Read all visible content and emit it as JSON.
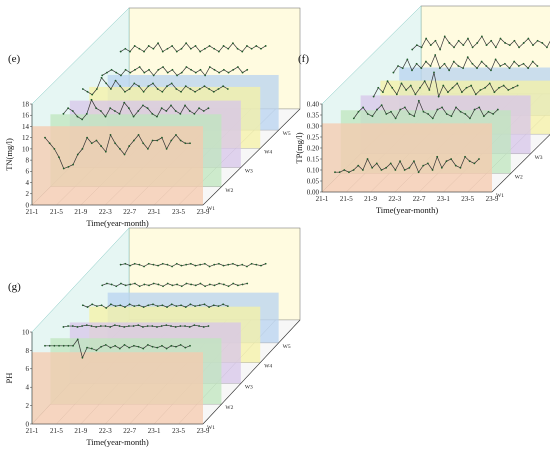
{
  "chart_data": [
    {
      "panel_label": "(e)",
      "type": "line",
      "ylabel": "TN(mg/l)",
      "xlabel": "Time(year-month)",
      "ylim": [
        0,
        18
      ],
      "y_ticks": [
        "0",
        "2",
        "4",
        "6",
        "8",
        "10",
        "12",
        "14",
        "16",
        "18"
      ],
      "x_ticks": [
        "21-1",
        "21-5",
        "21-9",
        "22-3",
        "22-7",
        "23-1",
        "23-5",
        "23-9"
      ],
      "series": [
        {
          "name": "W1",
          "color": "#f6c9ad",
          "values": [
            12,
            11,
            10,
            8.5,
            6.5,
            6.8,
            7.2,
            9,
            10,
            12,
            11,
            11.5,
            10.5,
            9.5,
            12.5,
            11,
            10,
            9,
            10.5,
            11.5,
            12.5,
            11,
            10,
            11.5,
            11.5,
            12,
            10,
            11.5,
            12.5,
            11.5,
            11,
            11
          ]
        },
        {
          "name": "W2",
          "color": "#bfe5be",
          "values": [
            13,
            14,
            13.5,
            12.5,
            12,
            13,
            15.5,
            14,
            13.5,
            12.5,
            14,
            13.5,
            13,
            15,
            14,
            12.5,
            13.5,
            14.5,
            14,
            13,
            12.5,
            14,
            13.5,
            14.5,
            13.5,
            13,
            14.5,
            13.5,
            13,
            14,
            13.5,
            14
          ]
        },
        {
          "name": "W3",
          "color": "#d7c6ea",
          "values": [
            14,
            13.5,
            13,
            14,
            16,
            15,
            14,
            15.5,
            14.5,
            13.5,
            14,
            15,
            14.5,
            13.5,
            14.5,
            15,
            14,
            13.5,
            14.5,
            15,
            14,
            13.5,
            14.5,
            14,
            13.5,
            14,
            14.5,
            14,
            13.5,
            14,
            14.5,
            14
          ]
        },
        {
          "name": "W4",
          "color": "#f5f1a6",
          "values": [
            13,
            13.5,
            14,
            13.5,
            13,
            14,
            13.5,
            14,
            14.5,
            13.5,
            14,
            13,
            14,
            14.5,
            13.5,
            14,
            13,
            13.5,
            14.5,
            14,
            13.5,
            14,
            13,
            14.5,
            14,
            13.5,
            14,
            13.5,
            14,
            14.5,
            13.5,
            14
          ]
        },
        {
          "name": "W5",
          "color": "#b8d3f0",
          "values": [
            14,
            14.5,
            14,
            15,
            14.5,
            14,
            15,
            14.5,
            15.5,
            14,
            14.5,
            15,
            14,
            14.5,
            15.5,
            14.5,
            15,
            14,
            14.5,
            15,
            14.5,
            14,
            15,
            14.5,
            15.5,
            14.5,
            14,
            15,
            14.5,
            15,
            14.5,
            15
          ]
        }
      ]
    },
    {
      "panel_label": "(f)",
      "type": "line",
      "ylabel": "TP(mg/l)",
      "xlabel": "Time(year-month)",
      "ylim": [
        0,
        0.4
      ],
      "y_ticks": [
        "0.00",
        "0.05",
        "0.10",
        "0.15",
        "0.20",
        "0.25",
        "0.30",
        "0.35",
        "0.40"
      ],
      "x_ticks": [
        "21-1",
        "21-5",
        "21-9",
        "22-3",
        "22-7",
        "23-1",
        "23-5",
        "23-9"
      ],
      "series": [
        {
          "name": "W1",
          "color": "#f6c9ad",
          "values": [
            0.09,
            0.09,
            0.1,
            0.09,
            0.1,
            0.12,
            0.1,
            0.15,
            0.11,
            0.13,
            0.1,
            0.11,
            0.13,
            0.1,
            0.14,
            0.1,
            0.11,
            0.14,
            0.09,
            0.12,
            0.13,
            0.1,
            0.16,
            0.11,
            0.14,
            0.15,
            0.12,
            0.11,
            0.16,
            0.14,
            0.13,
            0.15
          ]
        },
        {
          "name": "W2",
          "color": "#bfe5be",
          "values": [
            0.25,
            0.28,
            0.3,
            0.27,
            0.26,
            0.29,
            0.31,
            0.27,
            0.28,
            0.25,
            0.29,
            0.3,
            0.27,
            0.26,
            0.33,
            0.28,
            0.27,
            0.25,
            0.29,
            0.3,
            0.27,
            0.26,
            0.3,
            0.28,
            0.27,
            0.25,
            0.29,
            0.3,
            0.26,
            0.28,
            0.27,
            0.29
          ]
        },
        {
          "name": "W3",
          "color": "#d7c6ea",
          "values": [
            0.26,
            0.3,
            0.28,
            0.33,
            0.3,
            0.27,
            0.32,
            0.29,
            0.31,
            0.27,
            0.3,
            0.33,
            0.29,
            0.37,
            0.26,
            0.31,
            0.28,
            0.3,
            0.32,
            0.28,
            0.3,
            0.31,
            0.27,
            0.29,
            0.3,
            0.32,
            0.28,
            0.3,
            0.31,
            0.29,
            0.3,
            0.31
          ]
        },
        {
          "name": "W4",
          "color": "#f5f1a6",
          "values": [
            0.28,
            0.31,
            0.3,
            0.34,
            0.29,
            0.32,
            0.3,
            0.33,
            0.31,
            0.36,
            0.3,
            0.32,
            0.29,
            0.33,
            0.31,
            0.3,
            0.35,
            0.32,
            0.3,
            0.33,
            0.31,
            0.29,
            0.34,
            0.31,
            0.32,
            0.3,
            0.33,
            0.31,
            0.32,
            0.3,
            0.33,
            0.31
          ]
        },
        {
          "name": "W5",
          "color": "#b8d3f0",
          "values": [
            0.3,
            0.32,
            0.31,
            0.35,
            0.32,
            0.34,
            0.3,
            0.36,
            0.33,
            0.31,
            0.34,
            0.32,
            0.35,
            0.31,
            0.33,
            0.36,
            0.32,
            0.34,
            0.31,
            0.35,
            0.33,
            0.32,
            0.34,
            0.31,
            0.33,
            0.35,
            0.32,
            0.34,
            0.33,
            0.31,
            0.35,
            0.33
          ]
        }
      ]
    },
    {
      "panel_label": "(g)",
      "type": "line",
      "ylabel": "PH",
      "xlabel": "Time(year-month)",
      "ylim": [
        0,
        10
      ],
      "y_ticks": [
        "0",
        "2",
        "4",
        "6",
        "8",
        "10"
      ],
      "x_ticks": [
        "21-1",
        "21-5",
        "21-9",
        "22-3",
        "22-7",
        "23-1",
        "23-5",
        "23-9"
      ],
      "series": [
        {
          "name": "W1",
          "color": "#f6c9ad",
          "values": [
            8.5,
            8.5,
            8.5,
            8.5,
            8.5,
            8.5,
            8.5,
            9.2,
            7.2,
            8.3,
            8.2,
            8,
            8.4,
            8.6,
            8.3,
            8.5,
            8.2,
            8.6,
            8.3,
            8.5,
            8.4,
            8.2,
            8.6,
            8.4,
            8.3,
            8.5,
            8.2,
            8.5,
            8.4,
            8.6,
            8.3,
            8.5
          ]
        },
        {
          "name": "W2",
          "color": "#bfe5be",
          "values": [
            8.4,
            8.5,
            8.5,
            8.4,
            8.5,
            8.6,
            8.5,
            8.4,
            8.5,
            8.5,
            8.4,
            8.6,
            8.5,
            8.4,
            8.5,
            8.5,
            8.6,
            8.4,
            8.5,
            8.5,
            8.4,
            8.5,
            8.6,
            8.5,
            8.4,
            8.5,
            8.5,
            8.4,
            8.6,
            8.5,
            8.4,
            8.5
          ]
        },
        {
          "name": "W3",
          "color": "#d7c6ea",
          "values": [
            8.5,
            8.3,
            8.6,
            8.4,
            8.5,
            8.2,
            8.6,
            8.4,
            8.5,
            8.3,
            8.6,
            8.4,
            8.5,
            8.3,
            8.5,
            8.6,
            8.4,
            8.5,
            8.3,
            8.6,
            8.4,
            8.5,
            8.3,
            8.6,
            8.4,
            8.5,
            8.6,
            8.3,
            8.5,
            8.4,
            8.6,
            8.4
          ]
        },
        {
          "name": "W4",
          "color": "#f5f1a6",
          "values": [
            8.4,
            8.6,
            8.5,
            8.3,
            8.6,
            8.4,
            8.5,
            8.6,
            8.3,
            8.5,
            8.4,
            8.6,
            8.5,
            8.3,
            8.6,
            8.4,
            8.5,
            8.3,
            8.6,
            8.5,
            8.4,
            8.6,
            8.3,
            8.5,
            8.4,
            8.6,
            8.5,
            8.3,
            8.6,
            8.4,
            8.5,
            8.6
          ]
        },
        {
          "name": "W5",
          "color": "#b8d3f0",
          "values": [
            8.5,
            8.6,
            8.4,
            8.6,
            8.5,
            8.3,
            8.6,
            8.5,
            8.4,
            8.6,
            8.5,
            8.3,
            8.6,
            8.4,
            8.5,
            8.6,
            8.4,
            8.5,
            8.6,
            8.3,
            8.5,
            8.6,
            8.4,
            8.5,
            8.6,
            8.4,
            8.5,
            8.3,
            8.6,
            8.5,
            8.4,
            8.6
          ]
        }
      ]
    }
  ]
}
